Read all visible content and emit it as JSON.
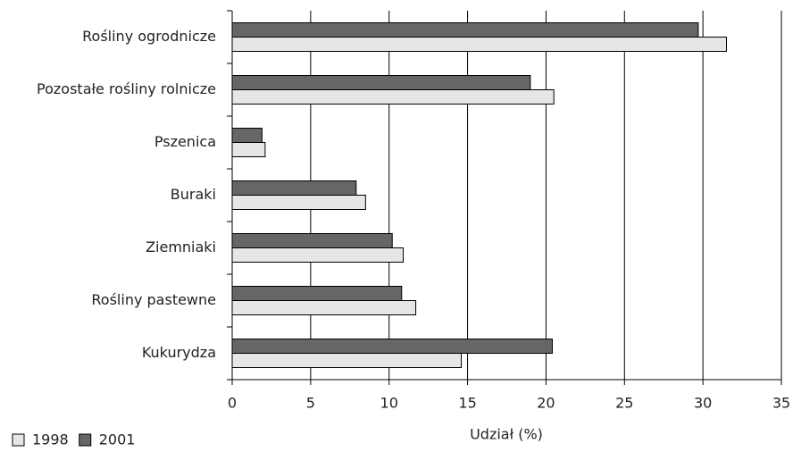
{
  "chart_data": {
    "type": "bar",
    "orientation": "horizontal",
    "x_label": "Udział (%)",
    "categories": [
      "Rośliny ogrodnicze",
      "Pozostałe rośliny rolnicze",
      "Pszenica",
      "Buraki",
      "Ziemniaki",
      "Rośliny pastewne",
      "Kukurydza"
    ],
    "series": [
      {
        "name": "1998",
        "color": "#e6e6e6",
        "values": [
          31.5,
          20.5,
          2.1,
          8.5,
          10.9,
          11.7,
          14.6
        ]
      },
      {
        "name": "2001",
        "color": "#666666",
        "values": [
          29.7,
          19.0,
          1.9,
          7.9,
          10.2,
          10.8,
          20.4
        ]
      }
    ],
    "xlim": [
      0,
      35
    ],
    "xticks": [
      0,
      5,
      10,
      15,
      20,
      25,
      30,
      35
    ],
    "grid": true,
    "legend": "bottom-left"
  }
}
